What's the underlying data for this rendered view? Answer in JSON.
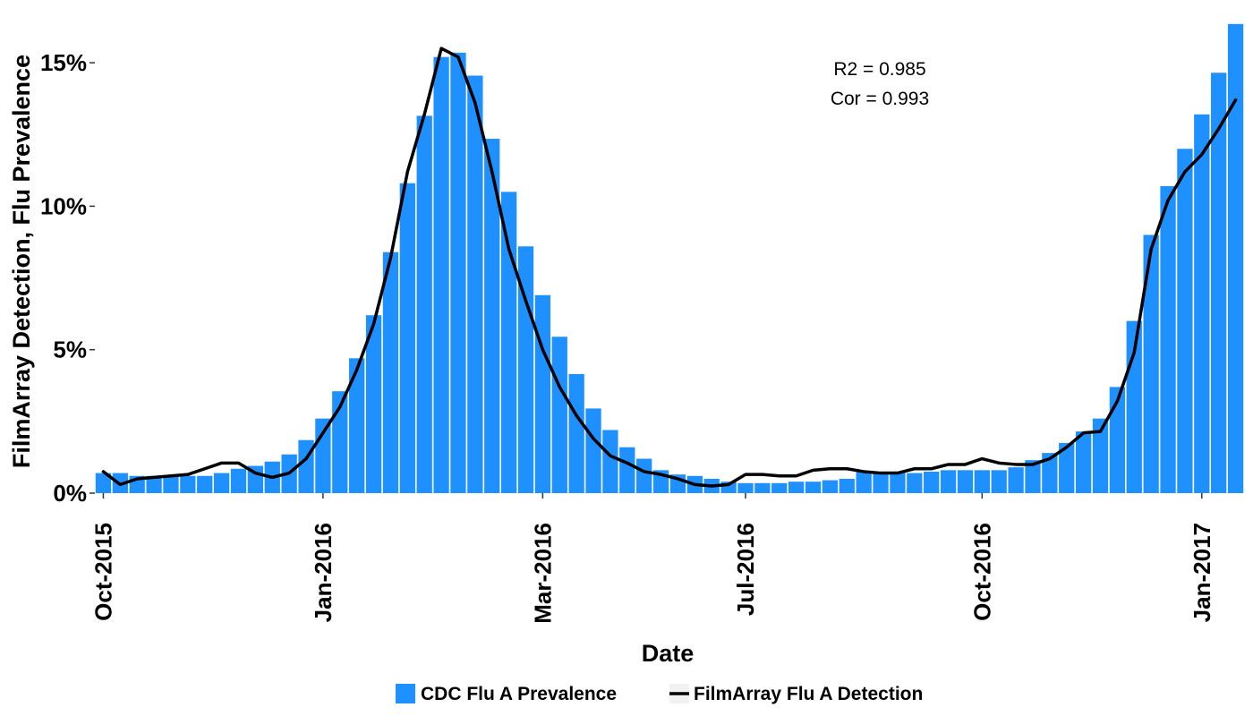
{
  "chart_data": {
    "type": "bar",
    "title": "",
    "xlabel": "Date",
    "ylabel": "FilmArray Detection, Flu Prevalence",
    "ylim": [
      0,
      16.5
    ],
    "y_ticks": [
      {
        "value": 0,
        "label": "0%"
      },
      {
        "value": 5,
        "label": "5%"
      },
      {
        "value": 10,
        "label": "10%"
      },
      {
        "value": 15,
        "label": "15%"
      }
    ],
    "x_ticks": [
      {
        "week": 0,
        "label": "Oct-2015"
      },
      {
        "week": 13,
        "label": "Jan-2016"
      },
      {
        "week": 26,
        "label": "Mar-2016"
      },
      {
        "week": 38,
        "label": "Jul-2016"
      },
      {
        "week": 52,
        "label": "Oct-2016"
      },
      {
        "week": 65,
        "label": "Jan-2017"
      }
    ],
    "grid": false,
    "legend": "bottom",
    "bar_color": "#1E90FF",
    "line_color": "#000000",
    "series": [
      {
        "name": "CDC Flu A Prevalence",
        "kind": "bar",
        "values": [
          0.7,
          0.7,
          0.6,
          0.6,
          0.6,
          0.6,
          0.6,
          0.7,
          0.85,
          0.95,
          1.1,
          1.35,
          1.85,
          2.6,
          3.55,
          4.7,
          6.2,
          8.4,
          10.8,
          13.15,
          15.2,
          15.35,
          14.55,
          12.35,
          10.5,
          8.6,
          6.9,
          5.45,
          4.15,
          2.95,
          2.2,
          1.6,
          1.2,
          0.8,
          0.65,
          0.6,
          0.5,
          0.4,
          0.35,
          0.35,
          0.35,
          0.4,
          0.4,
          0.45,
          0.5,
          0.75,
          0.75,
          0.75,
          0.7,
          0.75,
          0.8,
          0.8,
          0.8,
          0.8,
          0.9,
          1.15,
          1.4,
          1.75,
          2.15,
          2.6,
          3.7,
          6.0,
          9.0,
          10.7,
          12.0,
          13.2,
          14.65,
          16.35
        ]
      },
      {
        "name": "FilmArray Flu A Detection",
        "kind": "line",
        "values": [
          0.75,
          0.3,
          0.5,
          0.55,
          0.6,
          0.65,
          0.85,
          1.05,
          1.05,
          0.7,
          0.55,
          0.7,
          1.2,
          2.1,
          3.0,
          4.3,
          5.9,
          8.2,
          11.2,
          13.2,
          15.5,
          15.2,
          13.6,
          11.2,
          8.5,
          6.7,
          5.0,
          3.7,
          2.7,
          1.9,
          1.3,
          1.05,
          0.75,
          0.65,
          0.5,
          0.3,
          0.25,
          0.3,
          0.65,
          0.65,
          0.6,
          0.6,
          0.8,
          0.85,
          0.85,
          0.75,
          0.7,
          0.7,
          0.85,
          0.85,
          1.0,
          1.0,
          1.2,
          1.05,
          1.0,
          1.0,
          1.2,
          1.6,
          2.1,
          2.15,
          3.2,
          4.9,
          8.5,
          10.2,
          11.2,
          11.8,
          12.7,
          13.7
        ]
      }
    ],
    "annotations": [
      "R2 = 0.985",
      "Cor = 0.993"
    ]
  }
}
